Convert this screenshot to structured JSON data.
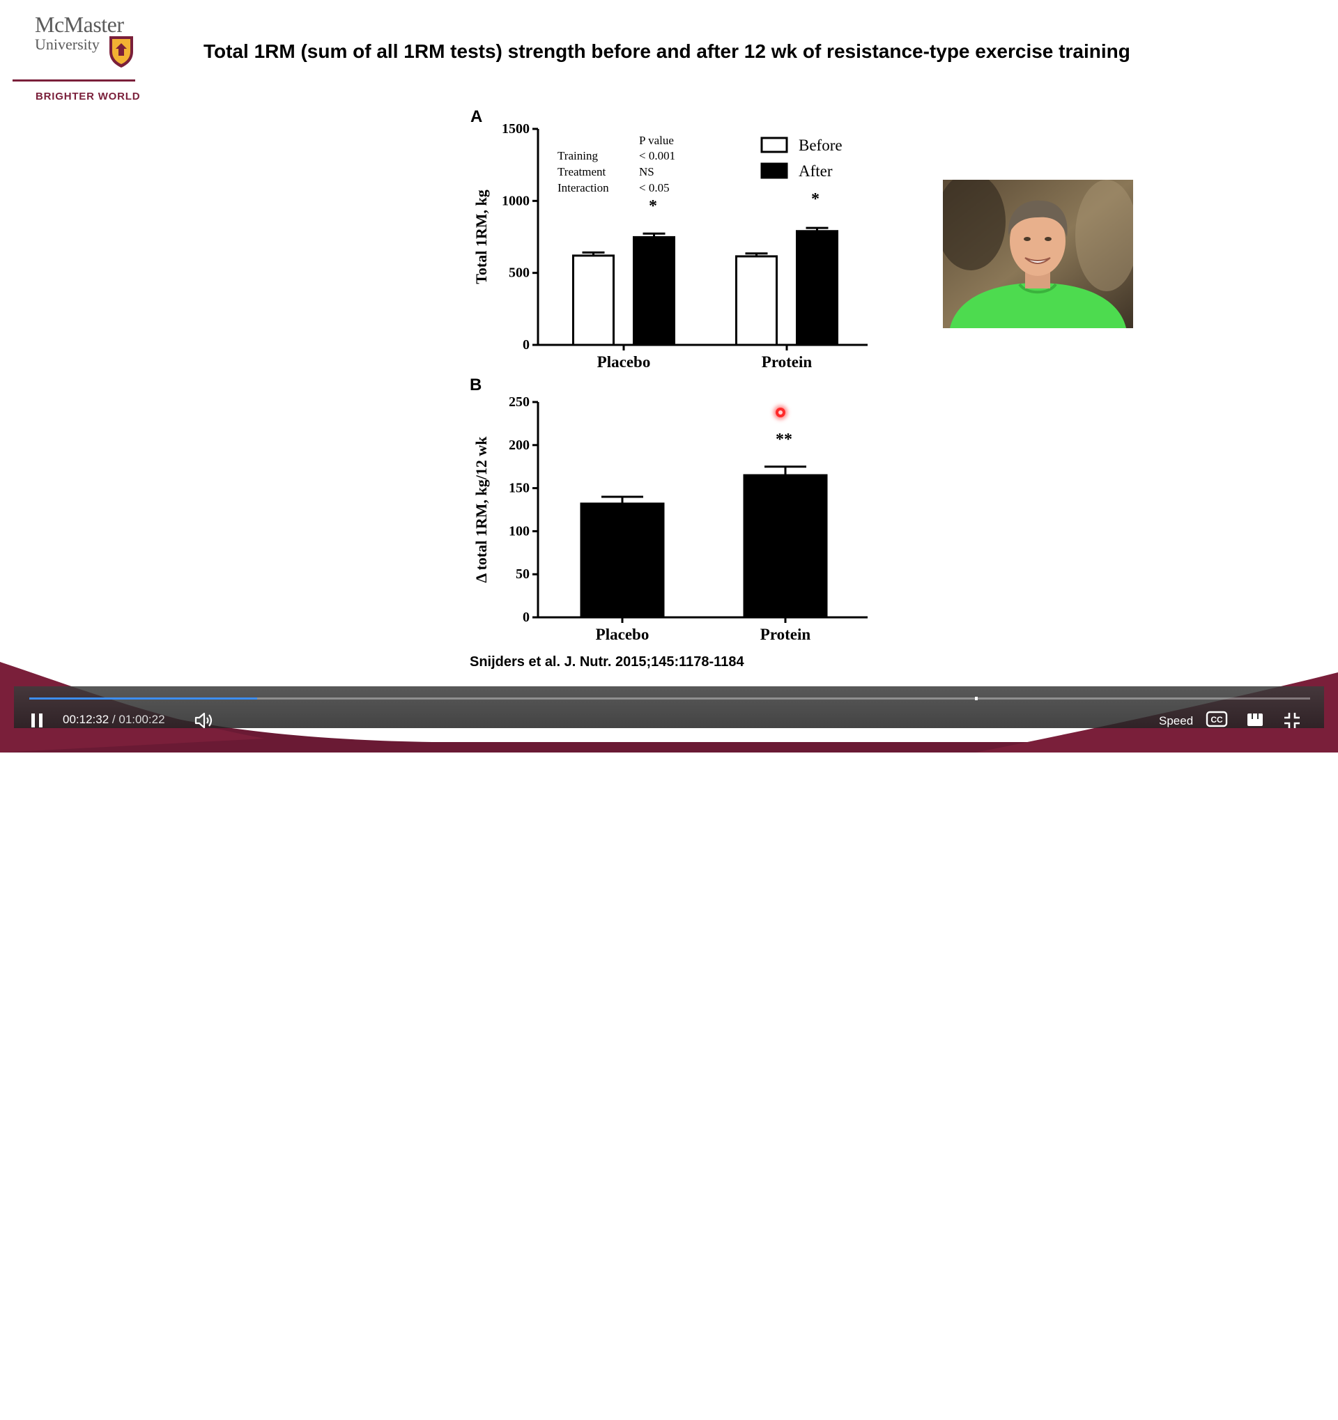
{
  "slide": {
    "title": "Total 1RM (sum of all 1RM tests) strength before and after 12 wk of resistance-type exercise training",
    "citation": "Snijders et al. J. Nutr. 2015;145:1178-1184"
  },
  "logo": {
    "name_line1": "McMaster",
    "name_line2": "University",
    "tagline": "BRIGHTER WORLD"
  },
  "panel_a": {
    "letter": "A",
    "pvalue_header": "P value",
    "stats": [
      {
        "label": "Training",
        "value": "< 0.001"
      },
      {
        "label": "Treatment",
        "value": "NS"
      },
      {
        "label": "Interaction",
        "value": "< 0.05"
      }
    ],
    "sig_placebo": "*",
    "sig_protein": "*"
  },
  "panel_b": {
    "letter": "B",
    "sig_protein": "**"
  },
  "chart_data": [
    {
      "type": "bar",
      "ylabel": "Total 1RM, kg",
      "ylim": [
        0,
        1500
      ],
      "yticks": [
        0,
        500,
        1000,
        1500
      ],
      "categories": [
        "Placebo",
        "Protein"
      ],
      "series": [
        {
          "name": "Before",
          "values": [
            620,
            615
          ],
          "errors": [
            22,
            20
          ],
          "color": "#ffffff"
        },
        {
          "name": "After",
          "values": [
            748,
            790
          ],
          "errors": [
            25,
            22
          ],
          "color": "#000000"
        }
      ],
      "legend_position": "top-right"
    },
    {
      "type": "bar",
      "ylabel": "Δ total 1RM, kg/12 wk",
      "ylim": [
        0,
        250
      ],
      "yticks": [
        0,
        50,
        100,
        150,
        200,
        250
      ],
      "categories": [
        "Placebo",
        "Protein"
      ],
      "values": [
        132,
        165
      ],
      "errors": [
        8,
        10
      ],
      "color": "#000000"
    }
  ],
  "player": {
    "current_time": "00:12:32",
    "separator": "/",
    "duration": "01:00:22",
    "progress": 0.178,
    "speed_label": "Speed",
    "cc_label": "CC",
    "watermark_line1": "McMaster",
    "watermark_line2": "University"
  },
  "colors": {
    "brand_maroon": "#7a1f3a",
    "progress_blue": "#3d8ef0"
  }
}
